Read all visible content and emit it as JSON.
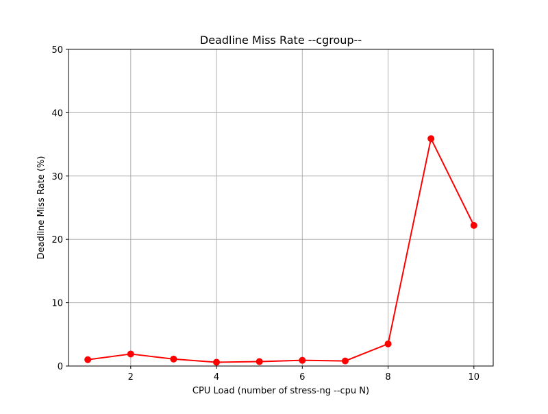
{
  "chart_data": {
    "type": "line",
    "title": "Deadline Miss Rate --cgroup--",
    "xlabel": "CPU Load (number of stress-ng --cpu N)",
    "ylabel": "Deadline Miss Rate (%)",
    "xlim": [
      0.55,
      10.45
    ],
    "ylim": [
      0,
      50
    ],
    "x_ticks": [
      2,
      4,
      6,
      8,
      10
    ],
    "y_ticks": [
      0,
      10,
      20,
      30,
      40,
      50
    ],
    "grid": true,
    "series": [
      {
        "color": "#ff0000",
        "marker": "circle",
        "x": [
          1,
          2,
          3,
          4,
          5,
          6,
          7,
          8,
          9,
          10
        ],
        "y": [
          1.0,
          1.9,
          1.1,
          0.6,
          0.7,
          0.9,
          0.8,
          3.5,
          35.9,
          22.2
        ]
      }
    ],
    "colors": {
      "grid": "#b0b0b0",
      "axes": "#000000",
      "background": "#ffffff"
    }
  }
}
